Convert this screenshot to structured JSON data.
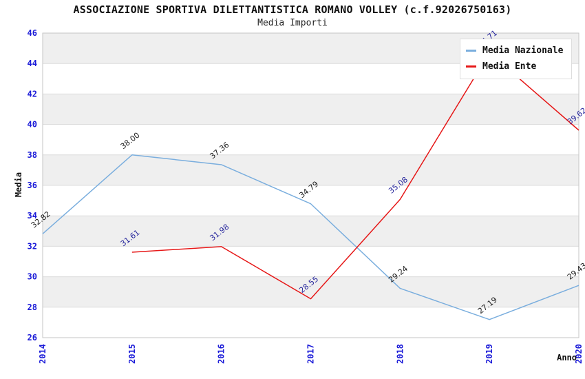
{
  "chart_data": {
    "type": "line",
    "title": "ASSOCIAZIONE SPORTIVA DILETTANTISTICA ROMANO VOLLEY (c.f.92026750163)",
    "subtitle": "Media Importi",
    "xlabel": "Anno",
    "ylabel": "Media",
    "ylim": [
      26,
      46
    ],
    "ytick_step": 2,
    "grid": "alternating-horizontal-bands",
    "band_color": "#efefef",
    "gridline_color": "#dcdcdc",
    "plot_border_color": "#c6c6c6",
    "tick_label_color": "#1b1bd8",
    "legend_position": "top-right",
    "categories": [
      2014,
      2015,
      2016,
      2017,
      2018,
      2019,
      2020
    ],
    "series": [
      {
        "name": "Media Nazionale",
        "color": "#7aaede",
        "label_color": "#1c1c1c",
        "x": [
          2014,
          2015,
          2016,
          2017,
          2018,
          2019,
          2020
        ],
        "values": [
          32.82,
          38.0,
          37.36,
          34.79,
          29.24,
          27.19,
          29.43
        ]
      },
      {
        "name": "Media Ente",
        "color": "#e61717",
        "label_color": "#26269c",
        "x": [
          2015,
          2016,
          2017,
          2018,
          2019,
          2020
        ],
        "values": [
          31.61,
          31.98,
          28.55,
          35.08,
          44.71,
          39.62
        ]
      }
    ]
  }
}
